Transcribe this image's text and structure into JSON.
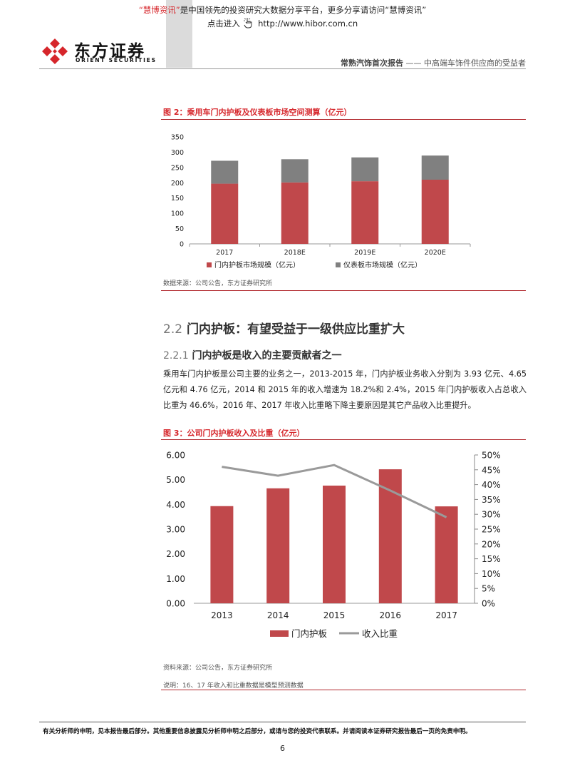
{
  "banner": {
    "q_open": "“",
    "brand1": "慧博资讯",
    "q_close": "”",
    "text": "是中国领先的投资研究大数据分享平台，更多分享请访问",
    "brand2": "“慧博资讯”",
    "line2_prefix": "点击进入",
    "url": "http://www.hibor.com.cn"
  },
  "logo": {
    "cn": "东方证券",
    "en": "ORIENT  SECURITIES"
  },
  "header": {
    "report_title": "常熟汽饰首次报告",
    "dash": "——",
    "subtitle": "中高端车饰件供应商的受益者"
  },
  "colors": {
    "accent": "#d6262b",
    "bar_red": "#c0484b",
    "bar_gray": "#808080",
    "line_gray": "#9a9a9a"
  },
  "figure2": {
    "title": "图 2：乘用车门内护板及仪表板市场空间测算（亿元）",
    "source": "数据来源：公司公告，东方证券研究所",
    "chart_data": {
      "type": "bar",
      "stacked": true,
      "categories": [
        "2017",
        "2018E",
        "2019E",
        "2020E"
      ],
      "series": [
        {
          "name": "门内护板市场规模（亿元）",
          "values": [
            197,
            201,
            205,
            210
          ],
          "color": "#c0484b"
        },
        {
          "name": "仪表板市场规模（亿元）",
          "values": [
            75,
            76,
            78,
            79
          ],
          "color": "#808080"
        }
      ],
      "ylim": [
        0,
        350
      ],
      "yticks": [
        "0",
        "50",
        "100",
        "150",
        "200",
        "250",
        "300",
        "350"
      ],
      "legend": "bottom"
    }
  },
  "section": {
    "h2_num": "2.2",
    "h2_text": "门内护板：有望受益于一级供应比重扩大",
    "h3_num": "2.2.1",
    "h3_text": "门内护板是收入的主要贡献者之一",
    "paragraph": "乘用车门内护板是公司主要的业务之一，2013-2015 年，门内护板业务收入分别为 3.93 亿元、4.65 亿元和 4.76 亿元，2014 和 2015 年的收入增速为 18.2%和 2.4%，2015 年门内护板收入占总收入比重为 46.6%，2016 年、2017 年收入比重略下降主要原因是其它产品收入比重提升。"
  },
  "figure3": {
    "title": "图 3：公司门内护板收入及比重（亿元）",
    "source": "资料来源：公司公告，东方证券研究所",
    "note": "说明：16、17 年收入和比重数据是模型预测数据",
    "chart_data": {
      "type": "bar",
      "categories": [
        "2013",
        "2014",
        "2015",
        "2016",
        "2017"
      ],
      "series": [
        {
          "name": "门内护板",
          "type": "bar",
          "axis": "left",
          "values": [
            3.93,
            4.65,
            4.76,
            5.42,
            3.92
          ],
          "color": "#c0484b"
        },
        {
          "name": "收入比重",
          "type": "line",
          "axis": "right",
          "values": [
            0.46,
            0.43,
            0.466,
            0.38,
            0.29
          ],
          "color": "#9a9a9a"
        }
      ],
      "ylim_left": [
        0,
        6
      ],
      "yticks_left": [
        "0.00",
        "1.00",
        "2.00",
        "3.00",
        "4.00",
        "5.00",
        "6.00"
      ],
      "ylim_right": [
        0,
        0.5
      ],
      "yticks_right": [
        "0%",
        "5%",
        "10%",
        "15%",
        "20%",
        "25%",
        "30%",
        "35%",
        "40%",
        "45%",
        "50%"
      ],
      "legend": "bottom"
    }
  },
  "footer": {
    "disclaimer": "有关分析师的申明，见本报告最后部分。其他重要信息披露见分析师申明之后部分，或请与您的投资代表联系。并请阅读本证券研究报告最后一页的免责申明。",
    "page": "6"
  }
}
